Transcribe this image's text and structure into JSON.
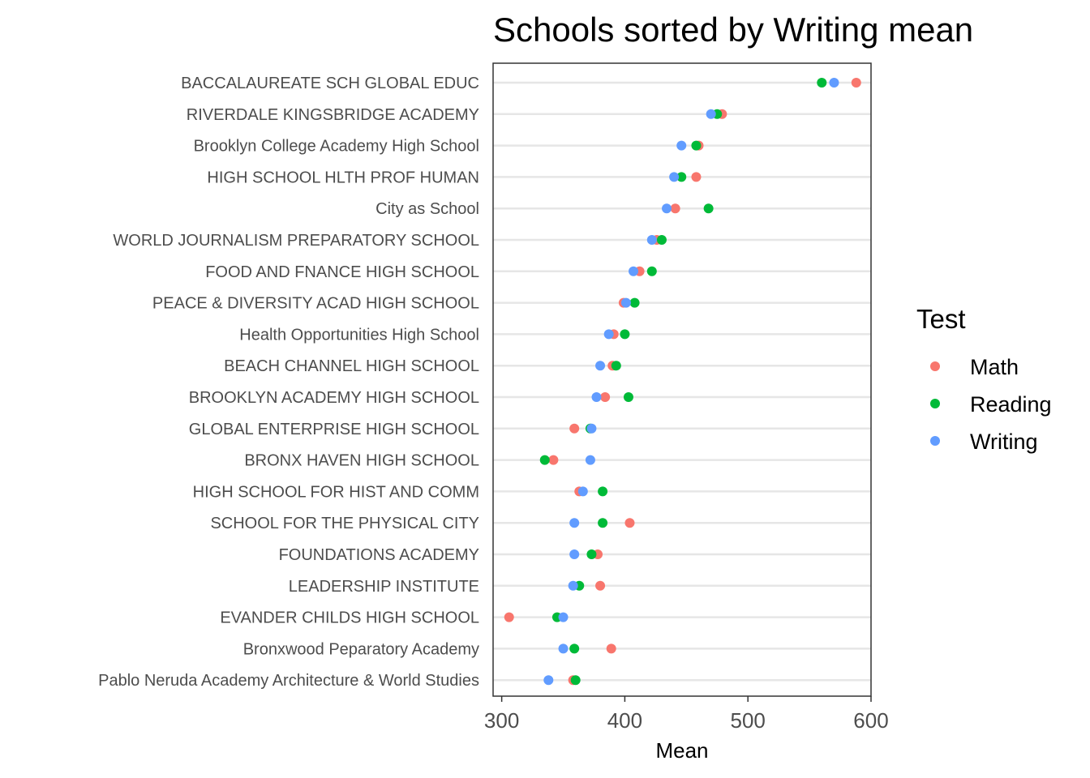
{
  "chart_data": {
    "type": "scatter",
    "title": "Schools sorted by Writing mean",
    "xlabel": "Mean",
    "ylabel": "",
    "xlim": [
      293,
      600
    ],
    "x_ticks": [
      300,
      400,
      500,
      600
    ],
    "grid": "horizontal",
    "legend": {
      "title": "Test",
      "position": "right",
      "entries": [
        "Math",
        "Reading",
        "Writing"
      ]
    },
    "colors": {
      "Math": "#F8766D",
      "Reading": "#00BA38",
      "Writing": "#619CFF"
    },
    "categories": [
      "BACCALAUREATE SCH GLOBAL EDUC",
      "RIVERDALE KINGSBRIDGE ACADEMY",
      "Brooklyn College Academy High School",
      "HIGH SCHOOL HLTH PROF HUMAN",
      "City as School",
      "WORLD JOURNALISM PREPARATORY SCHOOL",
      "FOOD AND FNANCE HIGH SCHOOL",
      "PEACE & DIVERSITY ACAD HIGH SCHOOL",
      "Health Opportunities High School",
      "BEACH CHANNEL HIGH SCHOOL",
      "BROOKLYN ACADEMY HIGH SCHOOL",
      "GLOBAL ENTERPRISE HIGH SCHOOL",
      "BRONX HAVEN HIGH SCHOOL",
      "HIGH SCHOOL FOR HIST AND COMM",
      "SCHOOL FOR THE PHYSICAL CITY",
      "FOUNDATIONS ACADEMY",
      "LEADERSHIP INSTITUTE",
      "EVANDER CHILDS HIGH SCHOOL",
      "Bronxwood Peparatory Academy",
      "Pablo Neruda Academy Architecture & World Studies"
    ],
    "series": [
      {
        "name": "Math",
        "values": [
          588,
          479,
          460,
          458,
          441,
          426,
          412,
          399,
          391,
          390,
          384,
          359,
          342,
          363,
          404,
          378,
          380,
          306,
          389,
          358
        ]
      },
      {
        "name": "Reading",
        "values": [
          560,
          475,
          458,
          446,
          468,
          430,
          422,
          408,
          400,
          393,
          403,
          372,
          335,
          382,
          382,
          373,
          363,
          345,
          359,
          360
        ]
      },
      {
        "name": "Writing",
        "values": [
          570,
          470,
          446,
          440,
          434,
          422,
          407,
          401,
          387,
          380,
          377,
          373,
          372,
          366,
          359,
          359,
          358,
          350,
          350,
          338
        ]
      }
    ]
  }
}
